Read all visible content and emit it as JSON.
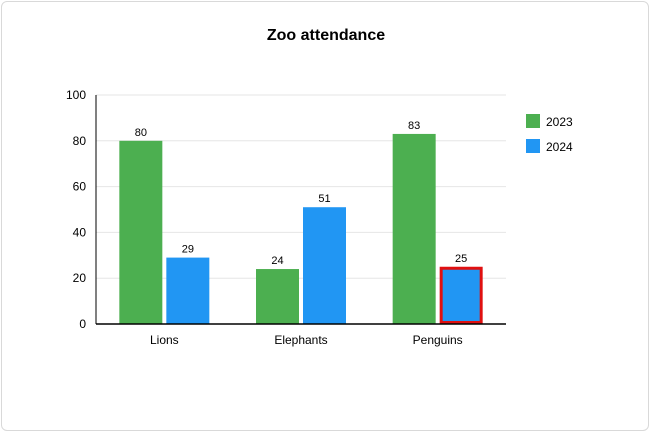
{
  "chart_data": {
    "type": "bar",
    "title": "Zoo attendance",
    "xlabel": "",
    "ylabel": "",
    "categories": [
      "Lions",
      "Elephants",
      "Penguins"
    ],
    "series": [
      {
        "name": "2023",
        "color": "#4caf50",
        "values": [
          80,
          24,
          83
        ]
      },
      {
        "name": "2024",
        "color": "#2196f3",
        "values": [
          29,
          51,
          25
        ]
      }
    ],
    "ylim": [
      0,
      100
    ],
    "yticks": [
      0,
      20,
      40,
      60,
      80,
      100
    ],
    "grid": true,
    "legend": "right",
    "data_labels": true,
    "highlight": {
      "category": "Penguins",
      "series": "2024",
      "color": "#e01010"
    }
  }
}
